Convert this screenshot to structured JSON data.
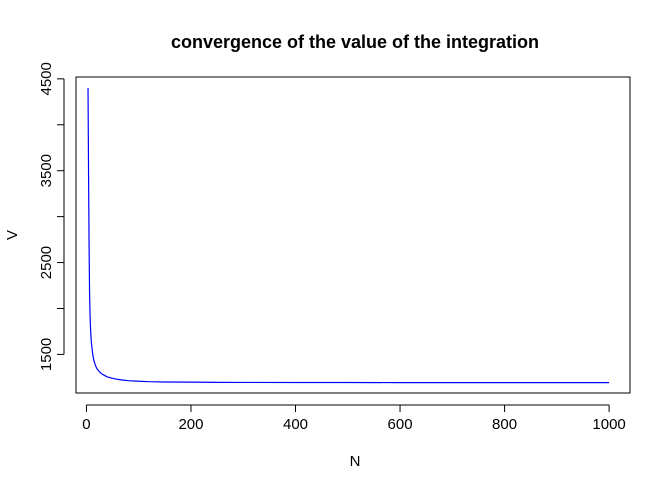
{
  "chart_data": {
    "type": "line",
    "title": "convergence of the value of the integration",
    "xlabel": "N",
    "ylabel": "V",
    "xlim": [
      -20,
      1040
    ],
    "ylim": [
      1080,
      4520
    ],
    "x_ticks": [
      0,
      200,
      400,
      600,
      800,
      1000
    ],
    "y_ticks": [
      1500,
      2000,
      2500,
      3000,
      3500,
      4000,
      4500
    ],
    "y_tick_labels": [
      "1500",
      "",
      "2500",
      "",
      "3500",
      "",
      "4500"
    ],
    "grid": false,
    "line_color": "#0000ff",
    "series": [
      {
        "x": [
          3,
          4,
          5,
          6,
          7,
          8,
          9,
          10,
          12,
          14,
          16,
          18,
          20,
          25,
          30,
          35,
          40,
          50,
          60,
          70,
          80,
          100,
          120,
          150,
          200,
          250,
          300,
          400,
          500,
          600,
          700,
          800,
          900,
          1000
        ],
        "y": [
          4400,
          3500,
          2700,
          2150,
          1900,
          1760,
          1660,
          1600,
          1500,
          1440,
          1400,
          1370,
          1345,
          1310,
          1285,
          1270,
          1255,
          1240,
          1228,
          1220,
          1214,
          1208,
          1203,
          1200,
          1198,
          1196,
          1195,
          1194,
          1194,
          1193,
          1193,
          1193,
          1193,
          1193
        ]
      }
    ]
  }
}
